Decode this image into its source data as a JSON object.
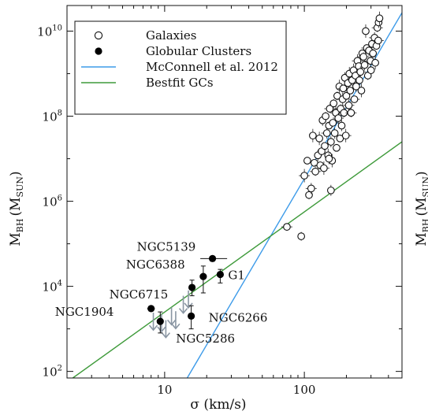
{
  "chart_data": {
    "type": "scatter",
    "xlabel": "σ (km/s)",
    "ylabel_main": "M",
    "ylabel_sub": "BH",
    "ylabel_unit": "(M",
    "ylabel_unit_sub": "SUN",
    "ylabel_close": ")",
    "xscale": "log",
    "yscale": "log",
    "xlim": [
      2,
      500
    ],
    "ylim": [
      70,
      40000000000
    ],
    "x_ticks": [
      {
        "value": 10,
        "label": "10"
      },
      {
        "value": 100,
        "label": "100"
      }
    ],
    "y_ticks": [
      {
        "value": 100,
        "base": "10",
        "exp": "2"
      },
      {
        "value": 10000,
        "base": "10",
        "exp": "4"
      },
      {
        "value": 1000000,
        "base": "10",
        "exp": "6"
      },
      {
        "value": 100000000,
        "base": "10",
        "exp": "8"
      },
      {
        "value": 10000000000,
        "base": "10",
        "exp": "10"
      }
    ],
    "legend": {
      "placement": "top-left",
      "entries": [
        {
          "label": "Galaxies",
          "kind": "open-circle"
        },
        {
          "label": "Globular Clusters",
          "kind": "filled-circle"
        },
        {
          "label": "McConnell et al. 2012",
          "kind": "line",
          "color": "#3d9be9"
        },
        {
          "label": "Bestfit GCs",
          "kind": "line",
          "color": "#3e9a3a"
        }
      ]
    },
    "fit_lines": [
      {
        "name": "McConnell et al. 2012",
        "color": "#3d9be9",
        "points": [
          [
            14.5,
            70
          ],
          [
            500,
            27000000000
          ]
        ]
      },
      {
        "name": "Bestfit GCs",
        "color": "#3e9a3a",
        "points": [
          [
            2.2,
            70
          ],
          [
            500,
            25000000
          ]
        ]
      }
    ],
    "galaxies": [
      [
        75,
        250000
      ],
      [
        95,
        150000
      ],
      [
        155,
        1800000
      ],
      [
        100,
        4000000
      ],
      [
        105,
        9000000
      ],
      [
        108,
        1400000
      ],
      [
        112,
        2000000
      ],
      [
        115,
        35000000
      ],
      [
        118,
        8000000
      ],
      [
        120,
        5000000
      ],
      [
        125,
        12000000
      ],
      [
        128,
        30000000
      ],
      [
        130,
        7000000
      ],
      [
        133,
        15000000
      ],
      [
        135,
        80000000
      ],
      [
        138,
        6000000
      ],
      [
        140,
        20000000
      ],
      [
        142,
        100000000
      ],
      [
        145,
        40000000
      ],
      [
        148,
        12000000
      ],
      [
        150,
        60000000
      ],
      [
        152,
        150000000
      ],
      [
        155,
        25000000
      ],
      [
        158,
        9000000
      ],
      [
        160,
        70000000
      ],
      [
        162,
        200000000
      ],
      [
        165,
        40000000
      ],
      [
        168,
        120000000
      ],
      [
        170,
        18000000
      ],
      [
        172,
        300000000
      ],
      [
        175,
        90000000
      ],
      [
        178,
        500000000
      ],
      [
        180,
        30000000
      ],
      [
        182,
        150000000
      ],
      [
        185,
        60000000
      ],
      [
        188,
        250000000
      ],
      [
        190,
        450000000
      ],
      [
        192,
        120000000
      ],
      [
        195,
        800000000
      ],
      [
        198,
        35000000
      ],
      [
        200,
        300000000
      ],
      [
        205,
        600000000
      ],
      [
        208,
        180000000
      ],
      [
        210,
        1000000000
      ],
      [
        213,
        400000000
      ],
      [
        216,
        120000000
      ],
      [
        220,
        700000000
      ],
      [
        225,
        1200000000
      ],
      [
        228,
        250000000
      ],
      [
        232,
        900000000
      ],
      [
        235,
        500000000
      ],
      [
        240,
        2000000000
      ],
      [
        245,
        1500000000
      ],
      [
        248,
        700000000
      ],
      [
        252,
        1100000000
      ],
      [
        256,
        400000000
      ],
      [
        260,
        3000000000
      ],
      [
        265,
        2500000000
      ],
      [
        270,
        1600000000
      ],
      [
        275,
        10000000000
      ],
      [
        280,
        4000000000
      ],
      [
        285,
        900000000
      ],
      [
        290,
        3500000000
      ],
      [
        298,
        2000000000
      ],
      [
        305,
        5000000000
      ],
      [
        310,
        3000000000
      ],
      [
        318,
        7000000000
      ],
      [
        322,
        1800000000
      ],
      [
        328,
        4500000000
      ],
      [
        333,
        12000000000
      ],
      [
        340,
        16000000000
      ],
      [
        345,
        20000000000
      ],
      [
        338,
        6000000000
      ],
      [
        300,
        1200000000
      ],
      [
        150,
        10000000
      ]
    ],
    "globular_clusters": [
      {
        "name": "NGC5139",
        "sigma": 22,
        "mbh": 45000,
        "xerr": [
          18,
          28
        ]
      },
      {
        "name": "NGC6388",
        "sigma": 18.9,
        "mbh": 17000,
        "yerr": [
          7000,
          30000
        ]
      },
      {
        "name": "G1",
        "sigma": 25,
        "mbh": 19000,
        "yerr": [
          12000,
          25000
        ]
      },
      {
        "name": "NGC6715",
        "sigma": 15.7,
        "mbh": 9400,
        "yerr": [
          6000,
          14000
        ]
      },
      {
        "name": "NGC1904",
        "sigma": 8,
        "mbh": 3000,
        "xerr": [
          7.5,
          8.5
        ]
      },
      {
        "name": "NGC6266",
        "sigma": 15.5,
        "mbh": 2000,
        "yerr": [
          1000,
          3500
        ]
      },
      {
        "name": "NGC5286",
        "sigma": 9.3,
        "mbh": 1500,
        "yerr": [
          800,
          2500
        ]
      }
    ],
    "gc_labels": [
      {
        "text": "NGC5139",
        "for": "NGC5139"
      },
      {
        "text": "NGC6388",
        "for": "NGC6388"
      },
      {
        "text": "G1",
        "for": "G1"
      },
      {
        "text": "NGC6715",
        "for": "NGC6715"
      },
      {
        "text": "NGC1904",
        "for": "NGC1904"
      },
      {
        "text": "NGC6266",
        "for": "NGC6266"
      },
      {
        "text": "NGC5286",
        "for": "NGC5286"
      }
    ],
    "upper_limits": [
      {
        "sigma": 8.3,
        "mbh": 2400
      },
      {
        "sigma": 9.5,
        "mbh": 2200
      },
      {
        "sigma": 10.2,
        "mbh": 1600
      },
      {
        "sigma": 11.2,
        "mbh": 3200
      },
      {
        "sigma": 12.0,
        "mbh": 2600
      },
      {
        "sigma": 13.6,
        "mbh": 6000
      },
      {
        "sigma": 14.8,
        "mbh": 8000
      }
    ]
  }
}
